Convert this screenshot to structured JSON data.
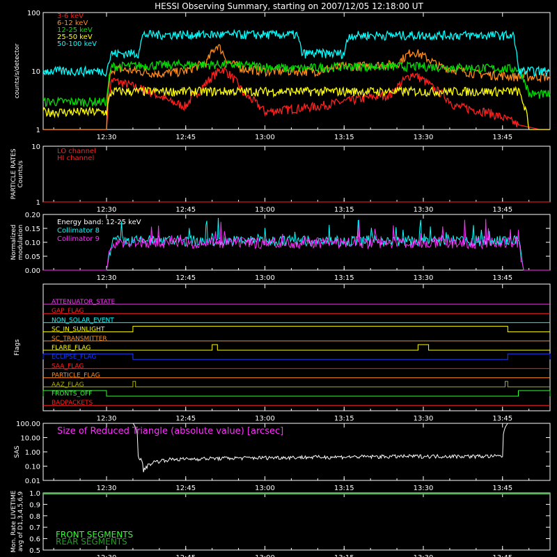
{
  "title": "HESSI Observing Summary, starting on 2007/12/05 12:18:00 UT",
  "time_ticks": [
    "12:30",
    "12:45",
    "13:00",
    "13:15",
    "13:30",
    "13:45"
  ],
  "colors": {
    "red": "#ff2020",
    "orange": "#ff8c1a",
    "green": "#00e000",
    "yellow": "#ffff00",
    "cyan": "#00ffff",
    "magenta": "#ff30ff",
    "blue": "#1a3cff",
    "olive": "#b0b000",
    "brightgreen": "#30ff30"
  },
  "chart_data": [
    {
      "type": "line",
      "ylabel": "counts/s/detector",
      "yscale": "log",
      "ylim": [
        1,
        100
      ],
      "y_ticks": [
        "1",
        "10",
        "100"
      ],
      "legend_placement": "top-left",
      "legend": [
        "3-6 keV",
        "6-12 keV",
        "12-25 keV",
        "25-50 keV",
        "50-100 keV"
      ],
      "series": [
        {
          "name": "3-6 keV",
          "x": [
            "12:18",
            "12:30",
            "12:31",
            "12:42",
            "12:45",
            "12:48",
            "12:52",
            "12:56",
            "13:00",
            "13:10",
            "13:15",
            "13:24",
            "13:28",
            "13:32",
            "13:36",
            "13:42",
            "13:48",
            "13:52",
            "13:54"
          ],
          "y": [
            1,
            1,
            7,
            3,
            2.5,
            5,
            11,
            4,
            2,
            2.5,
            3,
            4,
            9,
            5,
            2.5,
            2,
            1.2,
            1,
            1
          ]
        },
        {
          "name": "6-12 keV",
          "x": [
            "12:18",
            "12:30",
            "12:31",
            "12:40",
            "12:45",
            "12:49",
            "12:51",
            "12:53",
            "12:56",
            "13:00",
            "13:10",
            "13:15",
            "13:25",
            "13:28",
            "13:30",
            "13:33",
            "13:40",
            "13:48",
            "13:52",
            "13:54"
          ],
          "y": [
            1,
            1,
            11,
            9,
            10,
            14,
            28,
            14,
            11,
            10,
            10,
            12,
            13,
            22,
            18,
            12,
            9,
            8,
            8,
            8
          ]
        },
        {
          "name": "12-25 keV",
          "x": [
            "12:18",
            "12:30",
            "12:31",
            "12:45",
            "12:52",
            "13:00",
            "13:05",
            "13:15",
            "13:30",
            "13:45",
            "13:48",
            "13:50",
            "13:54"
          ],
          "y": [
            3,
            3,
            12,
            13,
            13,
            12,
            11,
            12,
            12,
            11,
            11,
            4,
            4
          ]
        },
        {
          "name": "25-50 keV",
          "x": [
            "12:18",
            "12:30",
            "12:31",
            "12:45",
            "13:00",
            "13:15",
            "13:30",
            "13:45",
            "13:48",
            "13:50",
            "13:54"
          ],
          "y": [
            2,
            2,
            4.5,
            4.5,
            4.5,
            4.5,
            4.5,
            4.5,
            4.5,
            1,
            1
          ]
        },
        {
          "name": "50-100 keV",
          "x": [
            "12:18",
            "12:30",
            "12:31",
            "12:36",
            "12:37",
            "13:06",
            "13:07",
            "13:15",
            "13:16",
            "13:47",
            "13:48",
            "13:54"
          ],
          "y": [
            10,
            10,
            20,
            20,
            42,
            42,
            20,
            20,
            41,
            41,
            10,
            10
          ]
        }
      ]
    },
    {
      "type": "line",
      "ylabel": "PARTICLE RATES Counts/s",
      "yscale": "log",
      "ylim": [
        1,
        10
      ],
      "y_ticks": [
        "1",
        "10"
      ],
      "legend": [
        "LO channel",
        "HI channel"
      ],
      "series": [
        {
          "name": "LO channel",
          "x": [
            "12:18",
            "13:54"
          ],
          "y": [
            1,
            1
          ]
        },
        {
          "name": "HI channel",
          "x": [
            "12:18",
            "13:54"
          ],
          "y": [
            1,
            1
          ]
        }
      ]
    },
    {
      "type": "line",
      "ylabel": "Normalized modulation",
      "ylim": [
        0,
        0.2
      ],
      "y_ticks": [
        "0.00",
        "0.05",
        "0.10",
        "0.15",
        "0.20"
      ],
      "annotation": "Energy band: 12-25 keV",
      "legend": [
        "Collimator 8",
        "Collimator 9"
      ],
      "series": [
        {
          "name": "Collimator 8",
          "x": [
            "12:18",
            "12:30",
            "12:31",
            "13:48",
            "13:49",
            "13:54"
          ],
          "y": [
            0,
            0,
            0.105,
            0.105,
            0,
            0
          ]
        },
        {
          "name": "Collimator 9",
          "x": [
            "12:18",
            "12:30",
            "12:31",
            "13:48",
            "13:49",
            "13:54"
          ],
          "y": [
            0,
            0,
            0.098,
            0.098,
            0,
            0
          ]
        }
      ]
    },
    {
      "type": "line",
      "ylabel": "Flags",
      "flags": [
        {
          "name": "ATTENUATOR_STATE",
          "color": "#ff30ff",
          "intervals": []
        },
        {
          "name": "GAP_FLAG",
          "color": "#ff2020",
          "intervals": []
        },
        {
          "name": "NON_SOLAR_EVENT",
          "color": "#00ffff",
          "intervals": []
        },
        {
          "name": "SC_IN_SUNLIGHT",
          "color": "#ffff00",
          "intervals": [
            [
              "12:35",
              "13:46"
            ]
          ]
        },
        {
          "name": "SC_TRANSMITTER",
          "color": "#ff8c1a",
          "intervals": []
        },
        {
          "name": "FLARE_FLAG",
          "color": "#ffff00",
          "intervals": [
            [
              "12:50",
              "12:51"
            ],
            [
              "13:29",
              "13:31"
            ]
          ]
        },
        {
          "name": "ECLIPSE_FLAG",
          "color": "#1a3cff",
          "intervals": [
            [
              "12:18",
              "12:35"
            ],
            [
              "13:46",
              "13:54"
            ]
          ]
        },
        {
          "name": "SAA_FLAG",
          "color": "#ff2020",
          "intervals": []
        },
        {
          "name": "PARTICLE_FLAG",
          "color": "#ff8c1a",
          "intervals": []
        },
        {
          "name": "AAZ_FLAG",
          "color": "#b0b000",
          "intervals": [
            [
              "12:35",
              "12:35.5"
            ],
            [
              "13:45.5",
              "13:46"
            ]
          ]
        },
        {
          "name": "FRONTS_OFF",
          "color": "#30ff30",
          "intervals": [
            [
              "12:18",
              "12:30"
            ],
            [
              "13:48",
              "13:54"
            ]
          ]
        },
        {
          "name": "BADPACKETS",
          "color": "#ff2020",
          "intervals": []
        }
      ]
    },
    {
      "type": "line",
      "ylabel": "SAS",
      "yscale": "log",
      "ylim": [
        0.01,
        100
      ],
      "y_ticks": [
        "0.01",
        "0.10",
        "1.00",
        "10.00",
        "100.00"
      ],
      "annotation": "Size of Reduced Triangle (absolute value) [arcsec]",
      "series": [
        {
          "name": "",
          "x": [
            "12:35",
            "12:36",
            "12:37",
            "12:39",
            "12:42",
            "12:50",
            "13:00",
            "13:15",
            "13:30",
            "13:45",
            "13:46"
          ],
          "y": [
            100,
            0.5,
            0.05,
            0.2,
            0.3,
            0.35,
            0.4,
            0.45,
            0.5,
            0.5,
            100
          ]
        }
      ]
    },
    {
      "type": "line",
      "ylabel": "Mon. Rate LIVETIME avg of D1,3,4,5,6,9",
      "ylim": [
        0.5,
        1.0
      ],
      "y_ticks": [
        "0.5",
        "0.6",
        "0.7",
        "0.8",
        "0.9",
        "1.0"
      ],
      "legend": [
        "FRONT SEGMENTS",
        "REAR SEGMENTS"
      ],
      "series": [
        {
          "name": "FRONT SEGMENTS",
          "x": [
            "12:18",
            "13:54"
          ],
          "y": [
            0.99,
            0.99
          ]
        },
        {
          "name": "REAR SEGMENTS",
          "x": [
            "12:18",
            "13:54"
          ],
          "y": [
            0.995,
            0.995
          ]
        }
      ]
    }
  ]
}
